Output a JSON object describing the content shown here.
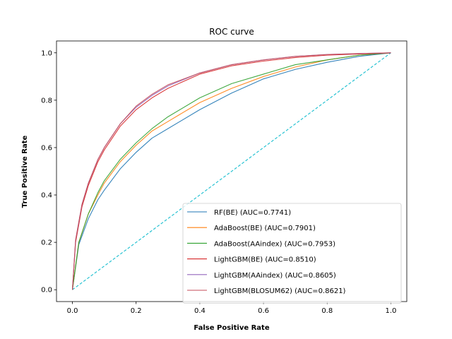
{
  "chart_data": {
    "type": "line",
    "title": "ROC curve",
    "xlabel": "False Positive Rate",
    "ylabel": "True Positive Rate",
    "xlim": [
      -0.05,
      1.05
    ],
    "ylim": [
      -0.05,
      1.05
    ],
    "xticks": [
      0.0,
      0.2,
      0.4,
      0.6,
      0.8,
      1.0
    ],
    "yticks": [
      0.0,
      0.2,
      0.4,
      0.6,
      0.8,
      1.0
    ],
    "xtick_labels": [
      "0.0",
      "0.2",
      "0.4",
      "0.6",
      "0.8",
      "1.0"
    ],
    "ytick_labels": [
      "0.0",
      "0.2",
      "0.4",
      "0.6",
      "0.8",
      "1.0"
    ],
    "grid": false,
    "legend_position": "lower-right",
    "series": [
      {
        "name": "RF(BE) (AUC=0.7741)",
        "color": "#1f77b4",
        "x": [
          0.0,
          0.02,
          0.05,
          0.08,
          0.1,
          0.15,
          0.2,
          0.25,
          0.3,
          0.4,
          0.5,
          0.6,
          0.7,
          0.8,
          0.9,
          1.0
        ],
        "y": [
          0.0,
          0.19,
          0.3,
          0.38,
          0.42,
          0.51,
          0.58,
          0.64,
          0.68,
          0.76,
          0.83,
          0.89,
          0.93,
          0.96,
          0.985,
          1.0
        ]
      },
      {
        "name": "AdaBoost(BE) (AUC=0.7901)",
        "color": "#ff7f0e",
        "x": [
          0.0,
          0.02,
          0.05,
          0.08,
          0.1,
          0.15,
          0.2,
          0.25,
          0.3,
          0.4,
          0.5,
          0.6,
          0.7,
          0.8,
          0.9,
          1.0
        ],
        "y": [
          0.0,
          0.2,
          0.32,
          0.4,
          0.45,
          0.54,
          0.61,
          0.67,
          0.71,
          0.79,
          0.85,
          0.9,
          0.94,
          0.97,
          0.99,
          1.0
        ]
      },
      {
        "name": "AdaBoost(AAindex) (AUC=0.7953)",
        "color": "#2ca02c",
        "x": [
          0.0,
          0.02,
          0.05,
          0.08,
          0.1,
          0.15,
          0.2,
          0.25,
          0.3,
          0.4,
          0.5,
          0.6,
          0.7,
          0.8,
          0.9,
          1.0
        ],
        "y": [
          0.0,
          0.2,
          0.32,
          0.41,
          0.46,
          0.55,
          0.62,
          0.68,
          0.73,
          0.81,
          0.87,
          0.91,
          0.95,
          0.97,
          0.99,
          1.0
        ]
      },
      {
        "name": "LightGBM(BE) (AUC=0.8510)",
        "color": "#d62728",
        "x": [
          0.0,
          0.01,
          0.03,
          0.05,
          0.08,
          0.1,
          0.15,
          0.2,
          0.25,
          0.3,
          0.4,
          0.5,
          0.6,
          0.7,
          0.8,
          0.9,
          1.0
        ],
        "y": [
          0.0,
          0.2,
          0.35,
          0.44,
          0.54,
          0.59,
          0.69,
          0.76,
          0.81,
          0.85,
          0.91,
          0.945,
          0.965,
          0.98,
          0.99,
          0.995,
          1.0
        ]
      },
      {
        "name": "LightGBM(AAindex) (AUC=0.8605)",
        "color": "#9467bd",
        "x": [
          0.0,
          0.01,
          0.03,
          0.05,
          0.08,
          0.1,
          0.15,
          0.2,
          0.25,
          0.3,
          0.4,
          0.5,
          0.6,
          0.7,
          0.8,
          0.9,
          1.0
        ],
        "y": [
          0.0,
          0.21,
          0.36,
          0.45,
          0.55,
          0.6,
          0.7,
          0.77,
          0.82,
          0.86,
          0.915,
          0.95,
          0.97,
          0.985,
          0.993,
          0.997,
          1.0
        ]
      },
      {
        "name": "LightGBM(BLOSUM62) (AUC=0.8621)",
        "color": "#c44e5a",
        "x": [
          0.0,
          0.01,
          0.03,
          0.05,
          0.08,
          0.1,
          0.15,
          0.2,
          0.25,
          0.3,
          0.4,
          0.5,
          0.6,
          0.7,
          0.8,
          0.9,
          1.0
        ],
        "y": [
          0.0,
          0.21,
          0.36,
          0.45,
          0.55,
          0.6,
          0.7,
          0.775,
          0.825,
          0.865,
          0.915,
          0.95,
          0.97,
          0.985,
          0.993,
          0.997,
          1.0
        ]
      }
    ],
    "reference_line": {
      "color": "#17becf",
      "style": "dashed",
      "x": [
        0.0,
        1.0
      ],
      "y": [
        0.0,
        1.0
      ]
    }
  }
}
